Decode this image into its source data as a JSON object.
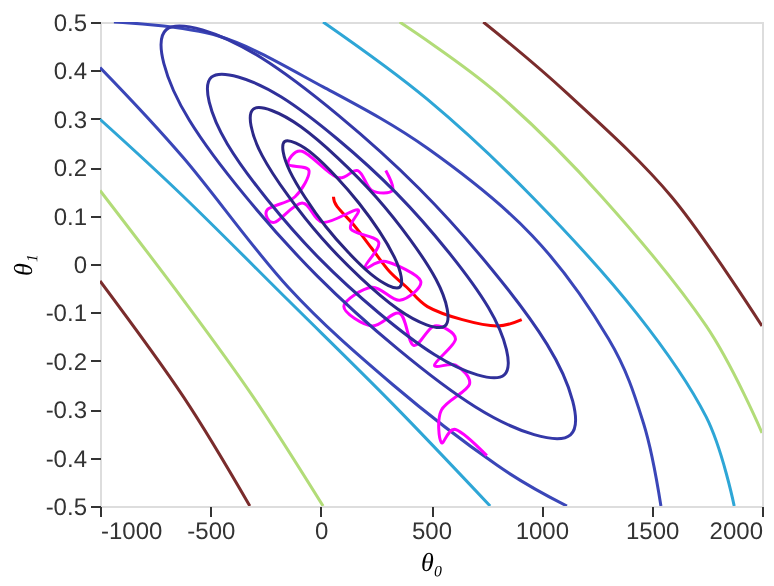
{
  "chart_data": {
    "type": "line",
    "xlabel": "θ₀",
    "ylabel": "θ₁",
    "xlim": [
      -1000,
      2000
    ],
    "xticks": [
      -1000,
      -500,
      0,
      500,
      1000,
      1500,
      2000
    ],
    "ylim": [
      -0.5,
      0.5
    ],
    "yticks": [
      -0.5,
      -0.4,
      -0.3,
      -0.2,
      -0.1,
      0,
      0.1,
      0.2,
      0.3,
      0.4,
      0.5
    ],
    "grid": false,
    "legend": false,
    "marker": "none",
    "line_style": "solid",
    "series": [
      {
        "color": "#3a46b8",
        "x": [
          -937,
          -463,
          11,
          484,
          958,
          1305,
          1463,
          1542
        ],
        "values": [
          0.5,
          0.471,
          0.366,
          0.239,
          0.059,
          -0.155,
          -0.329,
          -0.5
        ]
      },
      {
        "color": "#3a46b8",
        "x": [
          -1000,
          -621,
          -147,
          326,
          800,
          1116
        ],
        "values": [
          0.406,
          0.219,
          -0.048,
          -0.249,
          -0.416,
          -0.5
        ]
      },
      {
        "color": "#2ea6d6",
        "x": [
          11,
          484,
          958,
          1432,
          1747,
          1874
        ],
        "values": [
          0.5,
          0.34,
          0.139,
          -0.102,
          -0.316,
          -0.5
        ]
      },
      {
        "color": "#2ea6d6",
        "x": [
          -1000,
          -621,
          -147,
          326,
          768
        ],
        "values": [
          0.299,
          0.139,
          -0.075,
          -0.289,
          -0.5
        ]
      },
      {
        "color": "#b2dc78",
        "x": [
          358,
          800,
          1274,
          1747,
          2000
        ],
        "values": [
          0.5,
          0.353,
          0.139,
          -0.128,
          -0.349
        ]
      },
      {
        "color": "#b2dc78",
        "x": [
          -1000,
          -621,
          -305,
          11
        ],
        "values": [
          0.152,
          -0.075,
          -0.275,
          -0.5
        ]
      },
      {
        "color": "#7a2c2c",
        "x": [
          737,
          1116,
          1590,
          2000
        ],
        "values": [
          0.5,
          0.353,
          0.139,
          -0.128
        ]
      },
      {
        "color": "#7a2c2c",
        "x": [
          -1000,
          -621,
          -321
        ],
        "values": [
          -0.035,
          -0.275,
          -0.5
        ]
      },
      {
        "color": "#ff0000",
        "x": [
          911,
          800,
          642,
          484,
          390,
          311,
          232,
          153,
          74,
          58
        ],
        "values": [
          -0.115,
          -0.128,
          -0.115,
          -0.088,
          -0.048,
          -0.015,
          0.032,
          0.079,
          0.119,
          0.139
        ]
      },
      {
        "color": "#ff00ff",
        "x": [
          753,
          611,
          547,
          547,
          674,
          611,
          516,
          611,
          516,
          421,
          358,
          232,
          105,
          232,
          358,
          453,
          295,
          200,
          263,
          137,
          168,
          11,
          -84,
          -210,
          -242,
          -116,
          -53,
          -147,
          -84,
          74,
          168,
          232,
          326,
          295
        ],
        "values": [
          -0.396,
          -0.342,
          -0.369,
          -0.302,
          -0.249,
          -0.209,
          -0.209,
          -0.155,
          -0.128,
          -0.168,
          -0.102,
          -0.128,
          -0.088,
          -0.048,
          -0.075,
          -0.035,
          0.005,
          -0.008,
          0.045,
          0.072,
          0.112,
          0.086,
          0.126,
          0.086,
          0.112,
          0.139,
          0.193,
          0.206,
          0.233,
          0.179,
          0.193,
          0.152,
          0.152,
          0.193
        ]
      }
    ]
  }
}
